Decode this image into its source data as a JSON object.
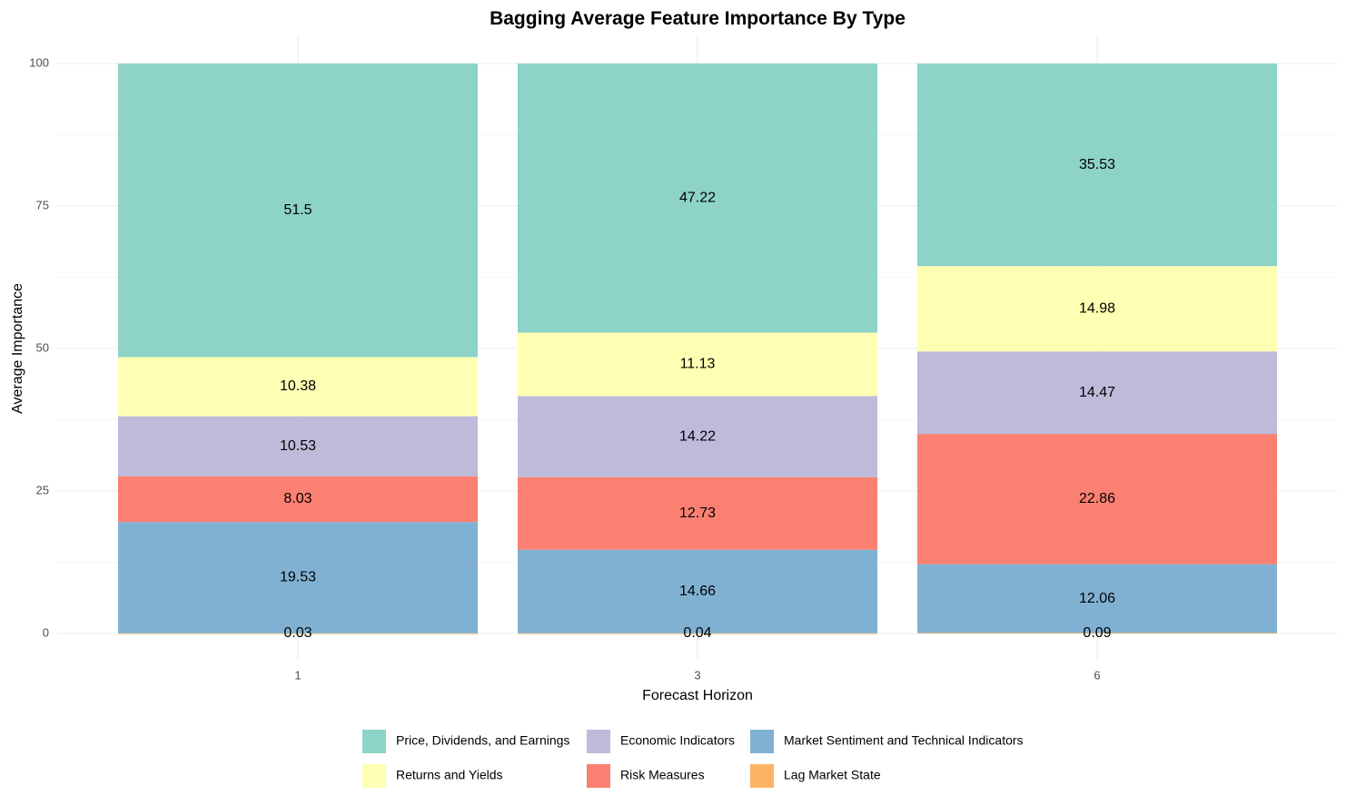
{
  "chart_data": {
    "type": "bar",
    "stacked": true,
    "title": "Bagging Average Feature Importance By Type",
    "xlabel": "Forecast Horizon",
    "ylabel": "Average Importance",
    "categories": [
      "1",
      "3",
      "6"
    ],
    "ylim": [
      0,
      100
    ],
    "yticks": [
      0,
      25,
      50,
      75,
      100
    ],
    "grid": true,
    "legend_position": "bottom",
    "series": [
      {
        "name": "Lag Market State",
        "color": "#FDB462",
        "values": [
          0.03,
          0.04,
          0.09
        ],
        "labels": [
          "0.03",
          "0.04",
          "0.09"
        ]
      },
      {
        "name": "Market Sentiment and Technical Indicators",
        "color": "#80B1D3",
        "values": [
          19.53,
          14.66,
          12.06
        ],
        "labels": [
          "19.53",
          "14.66",
          "12.06"
        ]
      },
      {
        "name": "Risk Measures",
        "color": "#FB8072",
        "values": [
          8.03,
          12.73,
          22.86
        ],
        "labels": [
          "8.03",
          "12.73",
          "22.86"
        ]
      },
      {
        "name": "Economic Indicators",
        "color": "#BEBADA",
        "values": [
          10.53,
          14.22,
          14.47
        ],
        "labels": [
          "10.53",
          "14.22",
          "14.47"
        ]
      },
      {
        "name": "Returns and Yields",
        "color": "#FFFFB3",
        "values": [
          10.38,
          11.13,
          14.98
        ],
        "labels": [
          "10.38",
          "11.13",
          "14.98"
        ]
      },
      {
        "name": "Price, Dividends, and Earnings",
        "color": "#8DD3C7",
        "values": [
          51.5,
          47.22,
          35.53
        ],
        "labels": [
          "51.5",
          "47.22",
          "35.53"
        ]
      }
    ],
    "legend_order": [
      "Price, Dividends, and Earnings",
      "Returns and Yields",
      "Economic Indicators",
      "Risk Measures",
      "Market Sentiment and Technical Indicators",
      "Lag Market State"
    ]
  }
}
